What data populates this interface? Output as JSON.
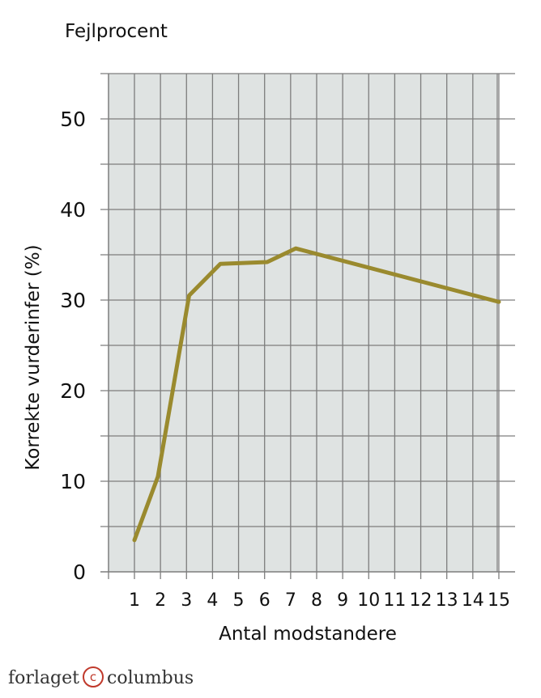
{
  "chart_data": {
    "type": "line",
    "title": "Fejlprocent",
    "xlabel": "Antal modstandere",
    "ylabel": "Korrekte vurderinfer (%)",
    "x_ticks": [
      "1",
      "2",
      "3",
      "4",
      "5",
      "6",
      "7",
      "8",
      "9",
      "10",
      "11",
      "12",
      "13",
      "14",
      "15"
    ],
    "y_ticks": [
      "0",
      "10",
      "20",
      "30",
      "40",
      "50"
    ],
    "xlim": [
      0,
      15
    ],
    "ylim": [
      0,
      55
    ],
    "grid": true,
    "colors": {
      "line": "#9a8a2e",
      "plot_background": "#dfe3e2",
      "grid": "#7d7d7d"
    },
    "series": [
      {
        "x": [
          1,
          1.9,
          3.1,
          4.3,
          6.1,
          7.2,
          15
        ],
        "y": [
          3.5,
          10.5,
          30.5,
          34,
          34.2,
          35.7,
          29.8
        ]
      }
    ]
  },
  "footer": {
    "brand_left": "forlaget",
    "copyright_symbol": "c",
    "brand_right": "columbus"
  }
}
